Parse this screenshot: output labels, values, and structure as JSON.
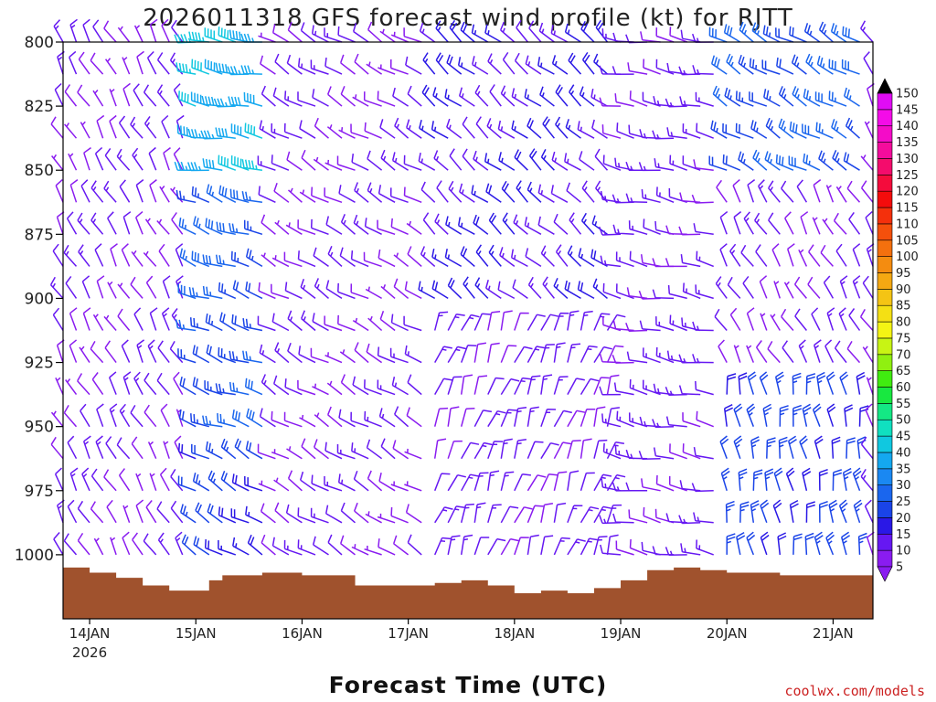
{
  "chart_data": {
    "type": "wind-barb-time-height",
    "title": "2026011318 GFS forecast wind profile (kt) for RJTT",
    "xlabel": "Forecast Time (UTC)",
    "ylabel": "",
    "credit": "coolwx.com/models",
    "units": "kt",
    "y_axis": {
      "range": [
        800,
        1025
      ],
      "inverted": true,
      "ticks": [
        800,
        825,
        850,
        875,
        900,
        925,
        950,
        975,
        1000
      ]
    },
    "x_axis": {
      "range_hours_since_20260113_18z": [
        0,
        183
      ],
      "ticks": [
        {
          "label": "14JAN",
          "sub": "2026",
          "hour": 6
        },
        {
          "label": "15JAN",
          "sub": "",
          "hour": 30
        },
        {
          "label": "16JAN",
          "sub": "",
          "hour": 54
        },
        {
          "label": "17JAN",
          "sub": "",
          "hour": 78
        },
        {
          "label": "18JAN",
          "sub": "",
          "hour": 102
        },
        {
          "label": "19JAN",
          "sub": "",
          "hour": 126
        },
        {
          "label": "20JAN",
          "sub": "",
          "hour": 150
        },
        {
          "label": "21JAN",
          "sub": "",
          "hour": 174
        }
      ]
    },
    "pressure_levels": [
      800,
      812.5,
      825,
      837.5,
      850,
      862.5,
      875,
      887.5,
      900,
      912.5,
      925,
      937.5,
      950,
      962.5,
      975,
      987.5,
      1000
    ],
    "time_step_hours": 3,
    "surface_pressure_hpa": [
      {
        "hour": 0,
        "p": 1005
      },
      {
        "hour": 6,
        "p": 1007
      },
      {
        "hour": 12,
        "p": 1009
      },
      {
        "hour": 18,
        "p": 1012
      },
      {
        "hour": 24,
        "p": 1014
      },
      {
        "hour": 30,
        "p": 1014
      },
      {
        "hour": 33,
        "p": 1010
      },
      {
        "hour": 36,
        "p": 1008
      },
      {
        "hour": 45,
        "p": 1007
      },
      {
        "hour": 54,
        "p": 1008
      },
      {
        "hour": 60,
        "p": 1008
      },
      {
        "hour": 66,
        "p": 1012
      },
      {
        "hour": 75,
        "p": 1012
      },
      {
        "hour": 84,
        "p": 1011
      },
      {
        "hour": 90,
        "p": 1010
      },
      {
        "hour": 96,
        "p": 1012
      },
      {
        "hour": 102,
        "p": 1015
      },
      {
        "hour": 108,
        "p": 1014
      },
      {
        "hour": 114,
        "p": 1015
      },
      {
        "hour": 120,
        "p": 1013
      },
      {
        "hour": 126,
        "p": 1010
      },
      {
        "hour": 132,
        "p": 1006
      },
      {
        "hour": 138,
        "p": 1005
      },
      {
        "hour": 144,
        "p": 1006
      },
      {
        "hour": 150,
        "p": 1007
      },
      {
        "hour": 162,
        "p": 1008
      },
      {
        "hour": 174,
        "p": 1008
      },
      {
        "hour": 183,
        "p": 1006
      }
    ],
    "wind_regimes": [
      {
        "start_hour": 0,
        "end_hour": 30,
        "levels": [
          800,
          1000
        ],
        "speed_kt": 10,
        "direction_deg": 330
      },
      {
        "start_hour": 30,
        "end_hour": 48,
        "levels": [
          800,
          850
        ],
        "speed_kt": 40,
        "direction_deg": 280
      },
      {
        "start_hour": 30,
        "end_hour": 48,
        "levels": [
          850,
          950
        ],
        "speed_kt": 25,
        "direction_deg": 290
      },
      {
        "start_hour": 30,
        "end_hour": 48,
        "levels": [
          950,
          1000
        ],
        "speed_kt": 20,
        "direction_deg": 300
      },
      {
        "start_hour": 48,
        "end_hour": 84,
        "levels": [
          800,
          1000
        ],
        "speed_kt": 10,
        "direction_deg": 300
      },
      {
        "start_hour": 84,
        "end_hour": 126,
        "levels": [
          800,
          900
        ],
        "speed_kt": 15,
        "direction_deg": 310
      },
      {
        "start_hour": 84,
        "end_hour": 126,
        "levels": [
          900,
          1000
        ],
        "speed_kt": 12,
        "direction_deg": 20
      },
      {
        "start_hour": 126,
        "end_hour": 150,
        "levels": [
          800,
          1000
        ],
        "speed_kt": 12,
        "direction_deg": 280
      },
      {
        "start_hour": 150,
        "end_hour": 183,
        "levels": [
          800,
          850
        ],
        "speed_kt": 25,
        "direction_deg": 300
      },
      {
        "start_hour": 150,
        "end_hour": 183,
        "levels": [
          850,
          925
        ],
        "speed_kt": 10,
        "direction_deg": 330
      },
      {
        "start_hour": 150,
        "end_hour": 183,
        "levels": [
          925,
          1000
        ],
        "speed_kt": 22,
        "direction_deg": 350
      }
    ],
    "colorbar": {
      "ticks": [
        5,
        10,
        15,
        20,
        25,
        30,
        35,
        40,
        45,
        50,
        55,
        60,
        65,
        70,
        75,
        80,
        85,
        90,
        95,
        100,
        105,
        110,
        115,
        120,
        125,
        130,
        135,
        140,
        145,
        150
      ],
      "colors": [
        "#8a1cf0",
        "#6618f2",
        "#2a18e6",
        "#1a44e8",
        "#1a66ee",
        "#1a88f2",
        "#14a8f0",
        "#10c8e0",
        "#10e0c0",
        "#14e884",
        "#18e840",
        "#40ec10",
        "#90f010",
        "#c8f414",
        "#f4f414",
        "#f4e014",
        "#f4c414",
        "#f4a812",
        "#f48c10",
        "#f4700e",
        "#f4500c",
        "#f4300c",
        "#f40c0c",
        "#f40c3c",
        "#f40c6c",
        "#f40c9c",
        "#f40cc8",
        "#f40ce8",
        "#e00cf4"
      ],
      "under_color": "#8a1cf0",
      "over_color": "#000000"
    }
  }
}
